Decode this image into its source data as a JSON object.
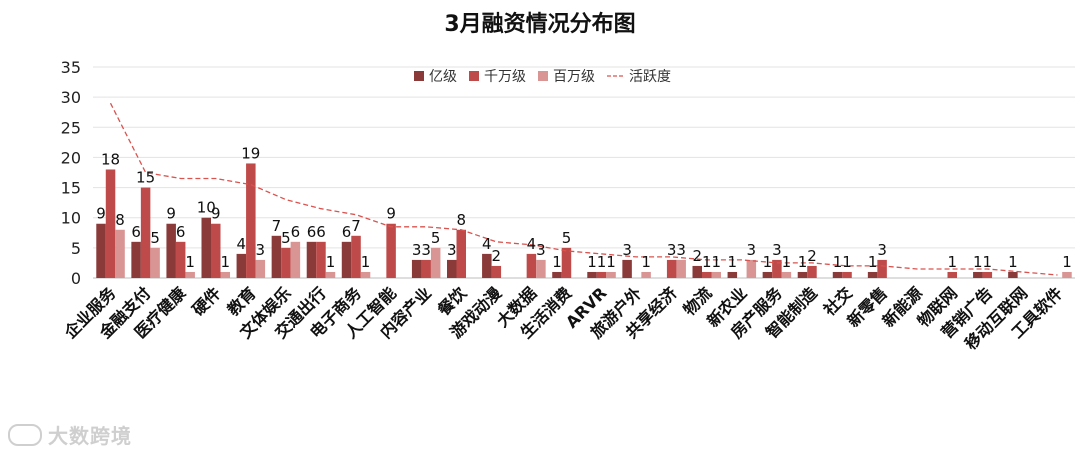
{
  "chart_data": {
    "type": "bar",
    "title": "3月融资情况分布图",
    "xlabel": "",
    "ylabel": "",
    "ylim": [
      0,
      35
    ],
    "yticks": [
      0,
      5,
      10,
      15,
      20,
      25,
      30,
      35
    ],
    "grid": true,
    "legend_position": "top-center",
    "categories": [
      "企业服务",
      "金融支付",
      "医疗健康",
      "硬件",
      "教育",
      "文体娱乐",
      "交通出行",
      "电子商务",
      "人工智能",
      "内容产业",
      "餐饮",
      "游戏动漫",
      "大数据",
      "生活消费",
      "ARVR",
      "旅游户外",
      "共享经济",
      "物流",
      "新农业",
      "房产服务",
      "智能制造",
      "社交",
      "新零售",
      "新能源",
      "物联网",
      "营销广告",
      "移动互联网",
      "工具软件"
    ],
    "series": [
      {
        "name": "亿级",
        "color": "#8b3a3a",
        "values": [
          9,
          6,
          9,
          10,
          4,
          7,
          6,
          6,
          0,
          3,
          3,
          4,
          0,
          1,
          1,
          3,
          0,
          2,
          1,
          1,
          1,
          1,
          1,
          0,
          0,
          1,
          1,
          0
        ]
      },
      {
        "name": "千万级",
        "color": "#bf4a4a",
        "values": [
          18,
          15,
          6,
          9,
          19,
          5,
          6,
          7,
          9,
          3,
          8,
          2,
          4,
          5,
          1,
          0,
          3,
          1,
          0,
          3,
          2,
          1,
          3,
          0,
          1,
          1,
          0,
          0
        ]
      },
      {
        "name": "百万级",
        "color": "#d99494",
        "values": [
          8,
          5,
          1,
          1,
          3,
          6,
          1,
          1,
          0,
          5,
          0,
          0,
          3,
          0,
          1,
          1,
          3,
          1,
          3,
          1,
          0,
          0,
          0,
          0,
          0,
          0,
          0,
          1
        ]
      }
    ],
    "activity_line": {
      "name": "活跃度",
      "color": "#d9534f",
      "values": [
        29,
        17.5,
        16.5,
        16.5,
        15.5,
        13,
        11.5,
        10.5,
        8.5,
        8.5,
        8,
        6,
        5.5,
        4.5,
        4,
        3.5,
        3.5,
        3,
        3,
        2.5,
        2.5,
        2,
        2,
        1.5,
        1.5,
        1.5,
        1,
        0.5
      ]
    },
    "hidden_labels": {
      "series": 2,
      "category": 8
    }
  },
  "watermark": {
    "text": "大数跨境"
  }
}
